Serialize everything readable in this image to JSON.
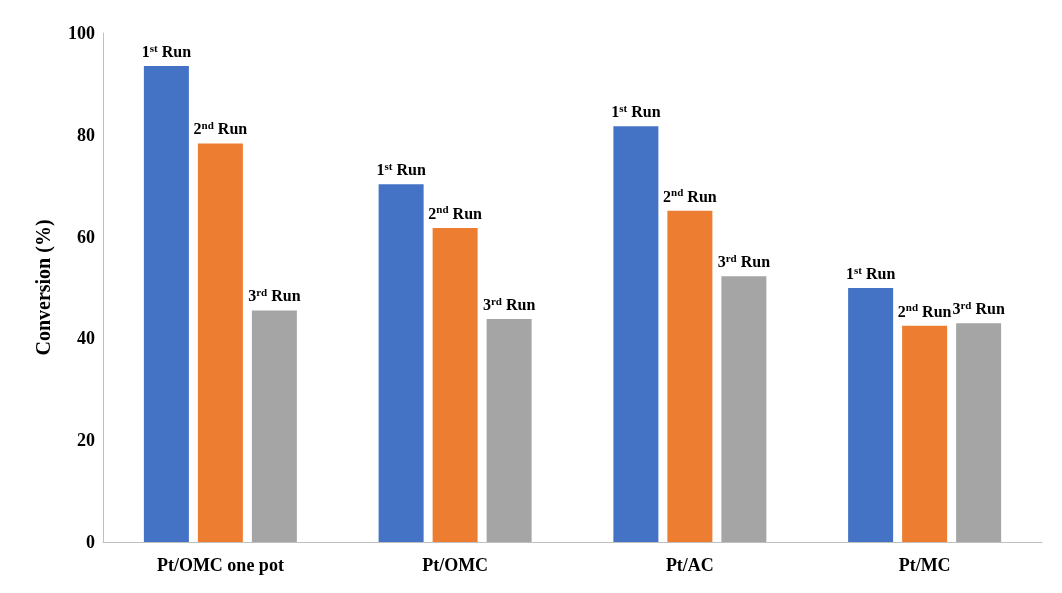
{
  "chart_data": {
    "type": "bar",
    "ylabel": "Conversion (%)",
    "categories": [
      "Pt/OMC one pot",
      "Pt/OMC",
      "Pt/AC",
      "Pt/MC"
    ],
    "series": [
      {
        "name": "1$^{st}$ Run",
        "color": "#4472c4",
        "values": [
          93.5,
          70.3,
          81.7,
          49.9
        ]
      },
      {
        "name": "2$^{nd}$ Run",
        "color": "#ed7d31",
        "values": [
          78.3,
          61.7,
          65.1,
          42.5
        ]
      },
      {
        "name": "3$^{rd}$ Run",
        "color": "#a5a5a5",
        "values": [
          45.5,
          43.8,
          52.2,
          43.0
        ]
      }
    ],
    "ylim": [
      0,
      100
    ],
    "yticks": [
      0,
      20,
      40,
      60,
      80,
      100
    ]
  }
}
